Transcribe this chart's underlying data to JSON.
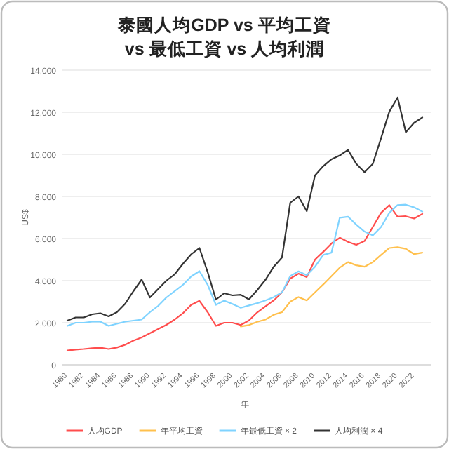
{
  "chart_data": {
    "type": "line",
    "title": "泰國人均GDP vs 平均工資\nvs 最低工資 vs 人均利潤",
    "xlabel": "年",
    "ylabel": "US$",
    "categories": [
      "1980",
      null,
      "1982",
      null,
      "1984",
      null,
      "1986",
      null,
      "1988",
      null,
      "1990",
      null,
      "1992",
      null,
      "1994",
      null,
      "1996",
      null,
      "1998",
      null,
      "2000",
      null,
      "2002",
      null,
      "2004",
      null,
      "2006",
      null,
      "2008",
      null,
      "2010",
      null,
      "2012",
      null,
      "2014",
      null,
      "2016",
      null,
      "2018",
      null,
      "2020",
      null,
      "2022",
      null
    ],
    "series": [
      {
        "name": "人均GDP",
        "color": "#ff4d4d",
        "values": [
          680,
          720,
          750,
          790,
          810,
          750,
          820,
          950,
          1150,
          1300,
          1500,
          1700,
          1900,
          2150,
          2450,
          2850,
          3040,
          2500,
          1850,
          2000,
          2000,
          1890,
          2110,
          2490,
          2780,
          3060,
          3440,
          4100,
          4330,
          4170,
          5000,
          5370,
          5770,
          6040,
          5840,
          5700,
          5880,
          6550,
          7220,
          7590,
          7040,
          7060,
          6950,
          7170
        ]
      },
      {
        "name": "年平均工資",
        "color": "#ffc04d",
        "values": [
          null,
          null,
          null,
          null,
          null,
          null,
          null,
          null,
          null,
          null,
          null,
          null,
          null,
          null,
          null,
          null,
          null,
          null,
          null,
          null,
          null,
          1820,
          1890,
          2040,
          2150,
          2380,
          2500,
          3000,
          3220,
          3060,
          3440,
          3820,
          4220,
          4620,
          4880,
          4730,
          4660,
          4880,
          5220,
          5550,
          5590,
          5510,
          5260,
          5330
        ]
      },
      {
        "name": "年最低工資 × 2",
        "color": "#7fd3ff",
        "values": [
          1850,
          2000,
          2000,
          2050,
          2050,
          1850,
          1950,
          2050,
          2100,
          2150,
          2500,
          2800,
          3200,
          3500,
          3800,
          4200,
          4450,
          3800,
          2850,
          3050,
          2890,
          2710,
          2820,
          2930,
          3060,
          3220,
          3440,
          4220,
          4440,
          4260,
          4660,
          5220,
          5330,
          6990,
          7040,
          6660,
          6330,
          6150,
          6550,
          7220,
          7590,
          7610,
          7480,
          7280
        ]
      },
      {
        "name": "人均利潤 × 4",
        "color": "#333333",
        "values": [
          2100,
          2250,
          2250,
          2400,
          2450,
          2300,
          2500,
          2900,
          3500,
          4050,
          3200,
          3600,
          4000,
          4300,
          4800,
          5250,
          5550,
          4400,
          3100,
          3400,
          3300,
          3330,
          3110,
          3550,
          4040,
          4660,
          5100,
          7700,
          8000,
          7300,
          9000,
          9440,
          9770,
          9950,
          10210,
          9550,
          9150,
          9550,
          10770,
          12030,
          12700,
          11050,
          11500,
          11750
        ]
      }
    ],
    "ylim": [
      0,
      14000
    ],
    "yticks": [
      {
        "value": 0,
        "label": "0"
      },
      {
        "value": 2000,
        "label": "2,000"
      },
      {
        "value": 4000,
        "label": "4,000"
      },
      {
        "value": 6000,
        "label": "6,000"
      },
      {
        "value": 8000,
        "label": "8,000"
      },
      {
        "value": 10000,
        "label": "10,000"
      },
      {
        "value": 12000,
        "label": "12,000"
      },
      {
        "value": 14000,
        "label": "14,000"
      }
    ],
    "grid": "y",
    "legend": "bottom",
    "marker": "none",
    "line_style": "solid"
  }
}
